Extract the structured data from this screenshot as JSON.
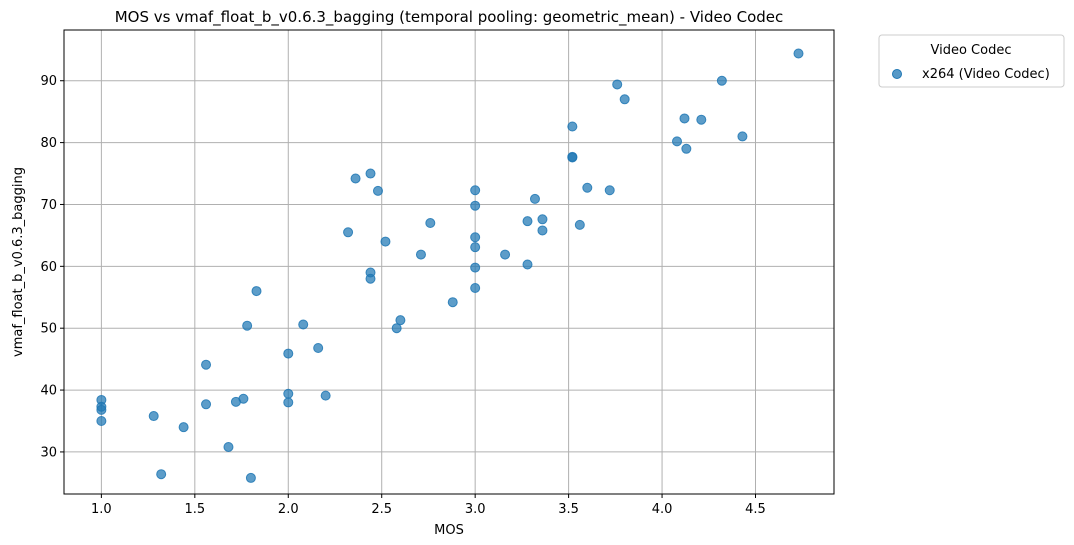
{
  "chart_data": {
    "type": "scatter",
    "title": "MOS vs vmaf_float_b_v0.6.3_bagging (temporal pooling: geometric_mean) - Video Codec",
    "xlabel": "MOS",
    "ylabel": "vmaf_float_b_v0.6.3_bagging",
    "xlim": [
      0.8,
      4.92
    ],
    "ylim": [
      23.2,
      98.2
    ],
    "xticks": [
      1.0,
      1.5,
      2.0,
      2.5,
      3.0,
      3.5,
      4.0,
      4.5
    ],
    "xtick_labels": [
      "1.0",
      "1.5",
      "2.0",
      "2.5",
      "3.0",
      "3.5",
      "4.0",
      "4.5"
    ],
    "yticks": [
      30,
      40,
      50,
      60,
      70,
      80,
      90
    ],
    "ytick_labels": [
      "30",
      "40",
      "50",
      "60",
      "70",
      "80",
      "90"
    ],
    "grid": true,
    "legend": {
      "title": "Video Codec",
      "placement": "outside top-right",
      "entries": [
        "x264 (Video Codec)"
      ]
    },
    "colors": {
      "series": "#1f77b4",
      "grid": "#b0b0b0"
    },
    "series": [
      {
        "name": "x264 (Video Codec)",
        "points": [
          [
            1.0,
            38.4
          ],
          [
            1.0,
            37.3
          ],
          [
            1.0,
            36.8
          ],
          [
            1.0,
            35.0
          ],
          [
            1.28,
            35.8
          ],
          [
            1.32,
            26.4
          ],
          [
            1.44,
            34.0
          ],
          [
            1.56,
            44.1
          ],
          [
            1.56,
            37.7
          ],
          [
            1.68,
            30.8
          ],
          [
            1.72,
            38.1
          ],
          [
            1.76,
            38.6
          ],
          [
            1.78,
            50.4
          ],
          [
            1.8,
            25.8
          ],
          [
            1.83,
            56.0
          ],
          [
            2.0,
            45.9
          ],
          [
            2.0,
            39.4
          ],
          [
            2.0,
            38.0
          ],
          [
            2.08,
            50.6
          ],
          [
            2.16,
            46.8
          ],
          [
            2.2,
            39.1
          ],
          [
            2.32,
            65.5
          ],
          [
            2.36,
            74.2
          ],
          [
            2.44,
            75.0
          ],
          [
            2.44,
            59.0
          ],
          [
            2.44,
            58.0
          ],
          [
            2.48,
            72.2
          ],
          [
            2.52,
            64.0
          ],
          [
            2.58,
            50.0
          ],
          [
            2.6,
            51.3
          ],
          [
            2.71,
            61.9
          ],
          [
            2.76,
            67.0
          ],
          [
            2.88,
            54.2
          ],
          [
            3.0,
            72.3
          ],
          [
            3.0,
            69.8
          ],
          [
            3.0,
            64.7
          ],
          [
            3.0,
            63.1
          ],
          [
            3.0,
            59.8
          ],
          [
            3.0,
            56.5
          ],
          [
            3.16,
            61.9
          ],
          [
            3.28,
            67.3
          ],
          [
            3.28,
            60.3
          ],
          [
            3.32,
            70.9
          ],
          [
            3.36,
            67.6
          ],
          [
            3.36,
            65.8
          ],
          [
            3.52,
            82.6
          ],
          [
            3.52,
            77.7
          ],
          [
            3.52,
            77.6
          ],
          [
            3.56,
            66.7
          ],
          [
            3.6,
            72.7
          ],
          [
            3.72,
            72.3
          ],
          [
            3.76,
            89.4
          ],
          [
            3.8,
            87.0
          ],
          [
            4.08,
            80.2
          ],
          [
            4.12,
            83.9
          ],
          [
            4.13,
            79.0
          ],
          [
            4.21,
            83.7
          ],
          [
            4.32,
            90.0
          ],
          [
            4.43,
            81.0
          ],
          [
            4.73,
            94.4
          ]
        ]
      }
    ]
  }
}
